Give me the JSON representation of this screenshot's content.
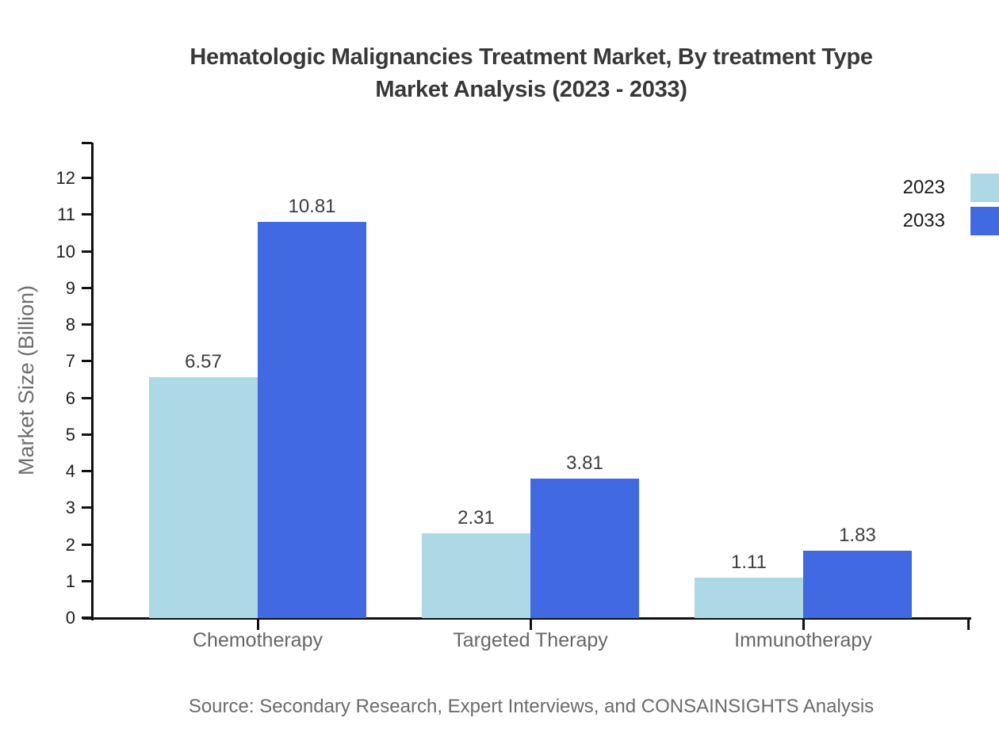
{
  "title": {
    "line1": "Hematologic Malignancies Treatment Market, By treatment Type",
    "line2": "Market Analysis (2023 - 2033)"
  },
  "y_axis": {
    "label": "Market Size (Billion)",
    "ticks": [
      0,
      1,
      2,
      3,
      4,
      5,
      6,
      7,
      8,
      9,
      10,
      11,
      12
    ]
  },
  "legend": [
    {
      "label": "2023",
      "color": "#ADD8E6"
    },
    {
      "label": "2033",
      "color": "#4169E1"
    }
  ],
  "source": "Source: Secondary Research, Expert Interviews, and CONSAINSIGHTS Analysis",
  "chart_data": {
    "type": "bar",
    "title": "Hematologic Malignancies Treatment Market, By treatment Type Market Analysis (2023 - 2033)",
    "categories": [
      "Chemotherapy",
      "Targeted Therapy",
      "Immunotherapy"
    ],
    "series": [
      {
        "name": "2023",
        "color": "#ADD8E6",
        "values": [
          6.57,
          2.31,
          1.11
        ]
      },
      {
        "name": "2033",
        "color": "#4169E1",
        "values": [
          10.81,
          3.81,
          1.83
        ]
      }
    ],
    "xlabel": "",
    "ylabel": "Market Size (Billion)",
    "ylim": [
      0,
      13
    ],
    "y_tick_step": 1,
    "grid": false,
    "value_labels": true,
    "legend_position": "top-right",
    "axis_color": "#111111"
  }
}
